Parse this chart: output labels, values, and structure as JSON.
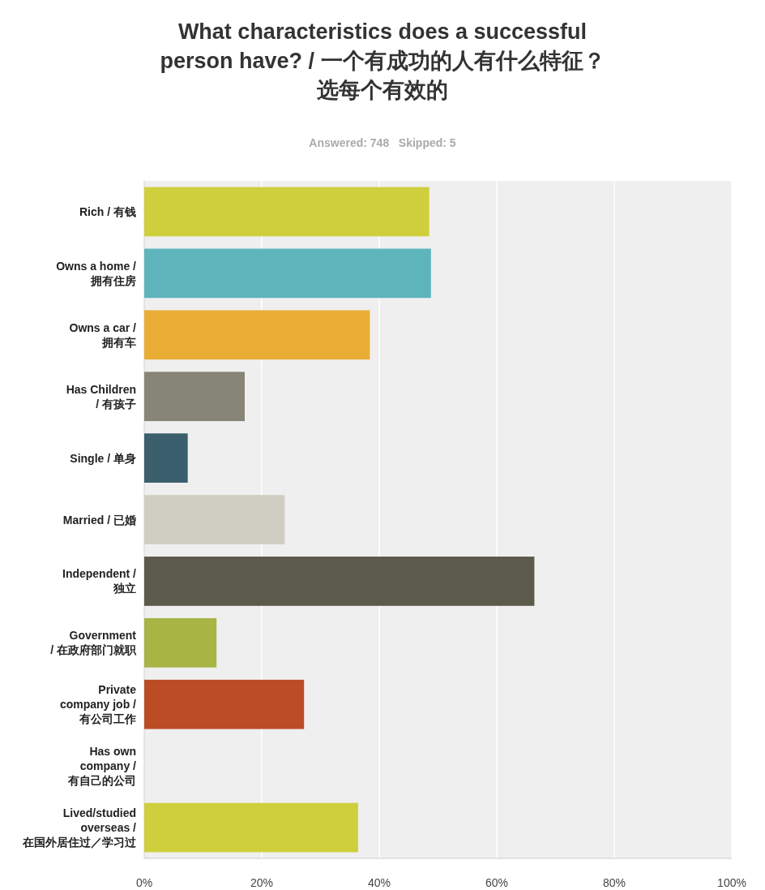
{
  "chart_data": {
    "type": "bar",
    "orientation": "horizontal",
    "title": "What characteristics does a successful person have? / 一个有成功的人有什么特征？选每个有效的",
    "subtitle": "Answered: 748   Skipped: 5",
    "categories": [
      "Rich / 有钱",
      "Owns a home /\n拥有住房",
      "Owns a car /\n拥有车",
      "Has Children\n/ 有孩子",
      "Single / 单身",
      "Married / 已婚",
      "Independent /\n独立",
      "Government\n/ 在政府部门就职",
      "Private\ncompany job /\n有公司工作",
      "Has own\ncompany /\n有自己的公司",
      "Lived/studied\noverseas /\n在国外居住过／学习过"
    ],
    "values": [
      48.5,
      48.8,
      38.4,
      17.1,
      7.4,
      23.9,
      66.4,
      12.3,
      27.2,
      0,
      36.4
    ],
    "colors": [
      "#cfcf3e",
      "#5db5bb",
      "#e9ad36",
      "#878576",
      "#3c5f6d",
      "#d0cec2",
      "#5b5a4b",
      "#a8b444",
      "#bb4c26",
      "#cfcf3e",
      "#cfcf3e"
    ],
    "xlim": [
      0,
      100
    ],
    "xticks": [
      {
        "value": 0,
        "label": "0%"
      },
      {
        "value": 20,
        "label": "20%"
      },
      {
        "value": 40,
        "label": "40%"
      },
      {
        "value": 60,
        "label": "60%"
      },
      {
        "value": 80,
        "label": "80%"
      },
      {
        "value": 100,
        "label": "100%"
      }
    ],
    "grid": "x"
  }
}
